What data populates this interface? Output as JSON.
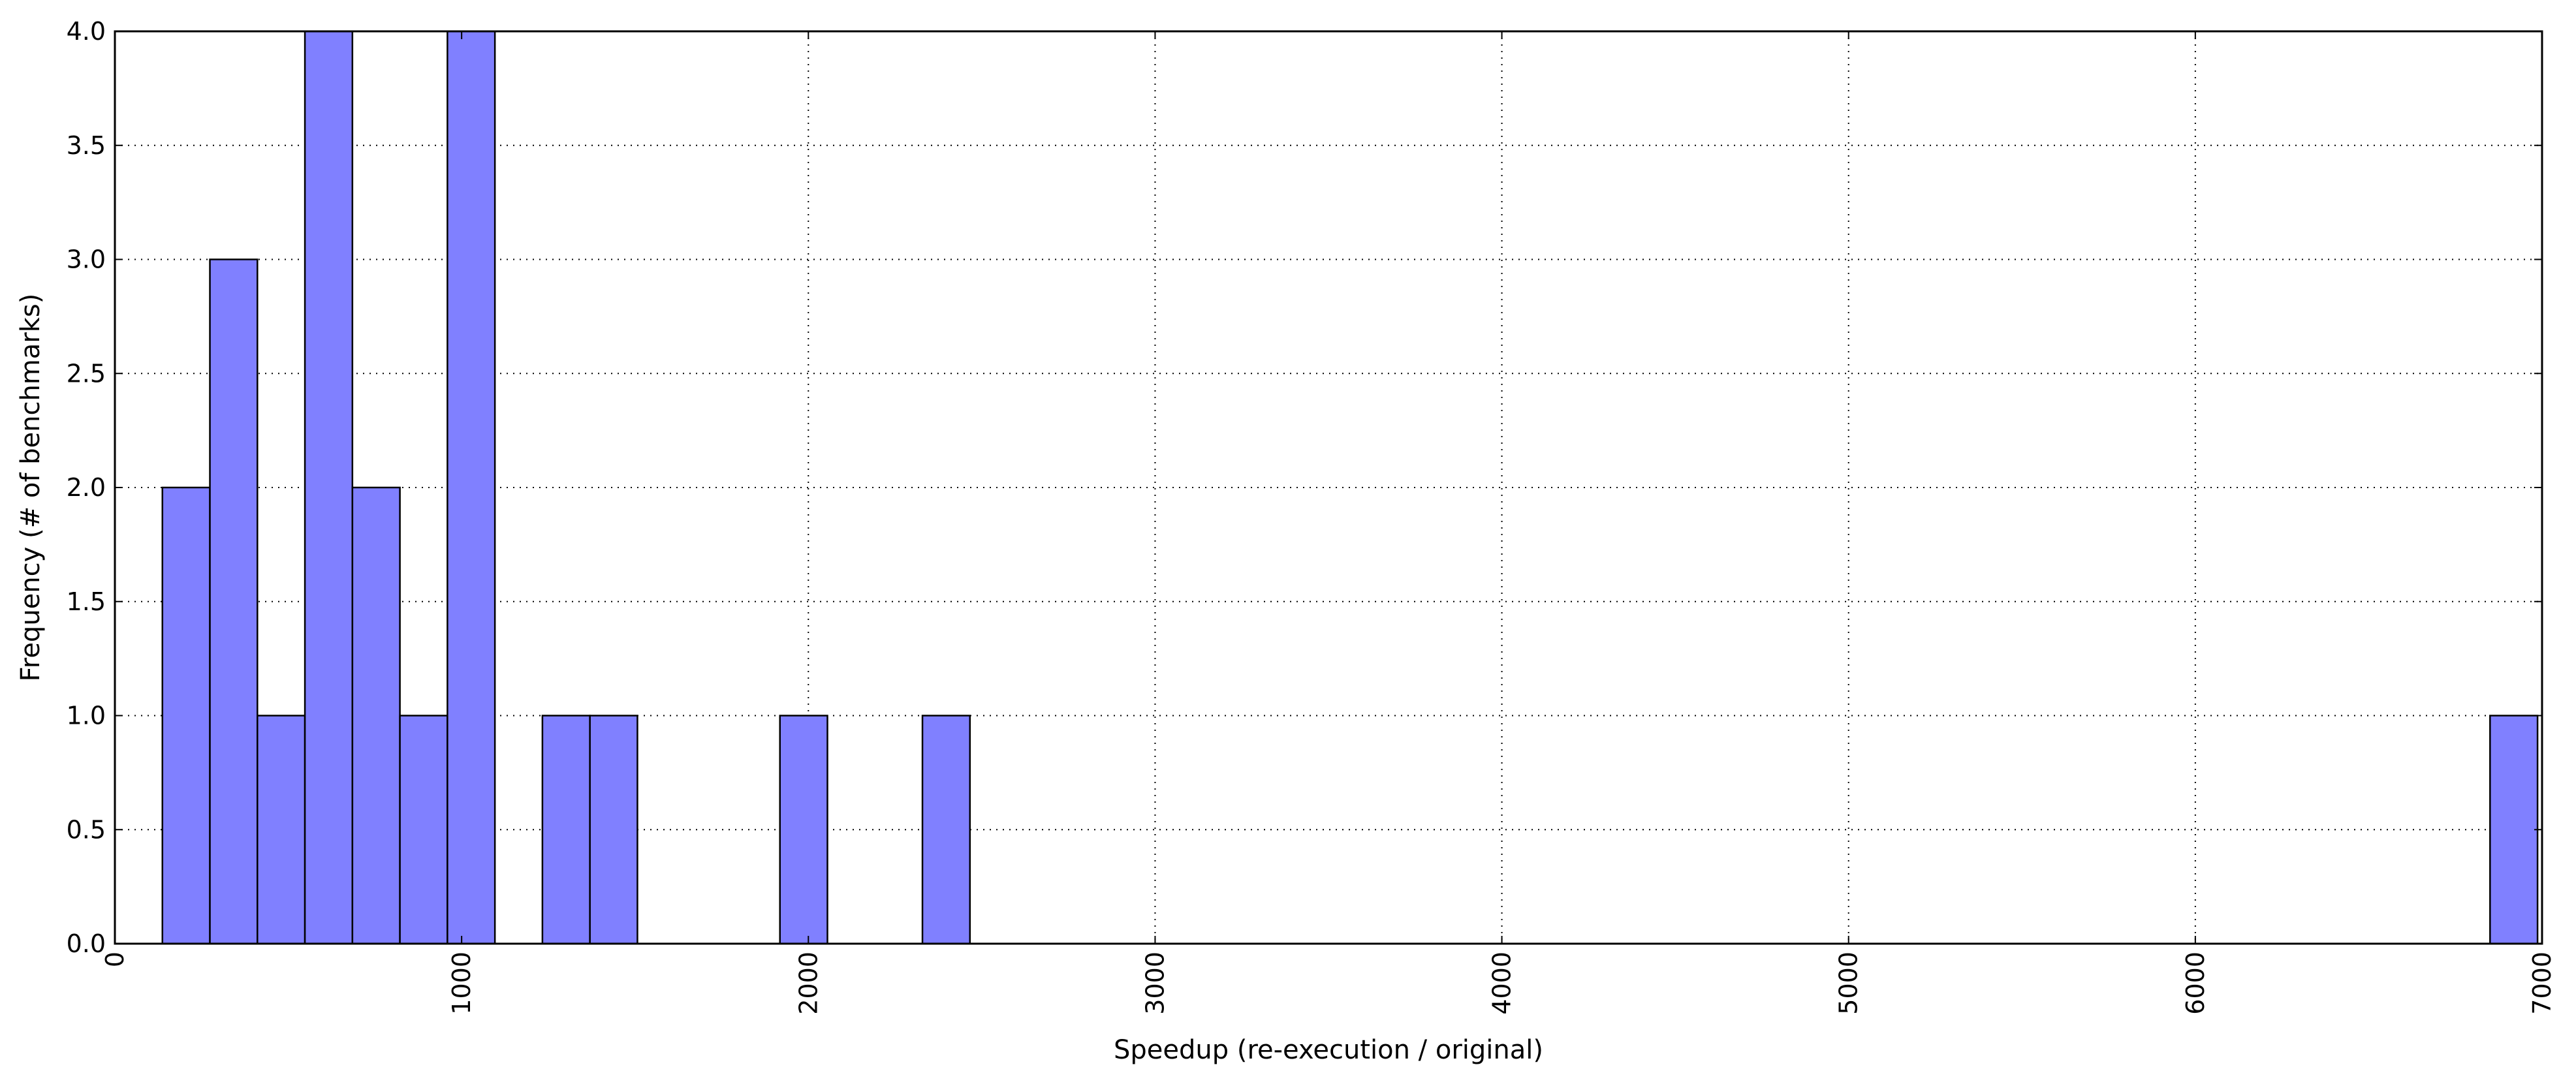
{
  "chart_data": {
    "type": "bar",
    "title": "",
    "xlabel": "Speedup (re-execution / original)",
    "ylabel": "Frequency (# of benchmarks)",
    "xlim": [
      0,
      7000
    ],
    "ylim": [
      0,
      4.0
    ],
    "grid": true,
    "bar_color": "#8080ff",
    "bar_edge_color": "#000000",
    "bins": [
      {
        "x0": 137,
        "x1": 274,
        "value": 2
      },
      {
        "x0": 274,
        "x1": 411,
        "value": 3
      },
      {
        "x0": 411,
        "x1": 548,
        "value": 1
      },
      {
        "x0": 548,
        "x1": 685,
        "value": 4
      },
      {
        "x0": 685,
        "x1": 822,
        "value": 2
      },
      {
        "x0": 822,
        "x1": 959,
        "value": 1
      },
      {
        "x0": 959,
        "x1": 1096,
        "value": 4
      },
      {
        "x0": 1233,
        "x1": 1370,
        "value": 1
      },
      {
        "x0": 1370,
        "x1": 1507,
        "value": 1
      },
      {
        "x0": 1918,
        "x1": 2055,
        "value": 1
      },
      {
        "x0": 2329,
        "x1": 2466,
        "value": 1
      },
      {
        "x0": 6850,
        "x1": 6987,
        "value": 1
      }
    ],
    "x_ticks": [
      0,
      1000,
      2000,
      3000,
      4000,
      5000,
      6000,
      7000
    ],
    "x_tick_labels": [
      "0",
      "1000",
      "2000",
      "3000",
      "4000",
      "5000",
      "6000",
      "7000"
    ],
    "y_ticks": [
      0.0,
      0.5,
      1.0,
      1.5,
      2.0,
      2.5,
      3.0,
      3.5,
      4.0
    ],
    "y_tick_labels": [
      "0.0",
      "0.5",
      "1.0",
      "1.5",
      "2.0",
      "2.5",
      "3.0",
      "3.5",
      "4.0"
    ]
  }
}
